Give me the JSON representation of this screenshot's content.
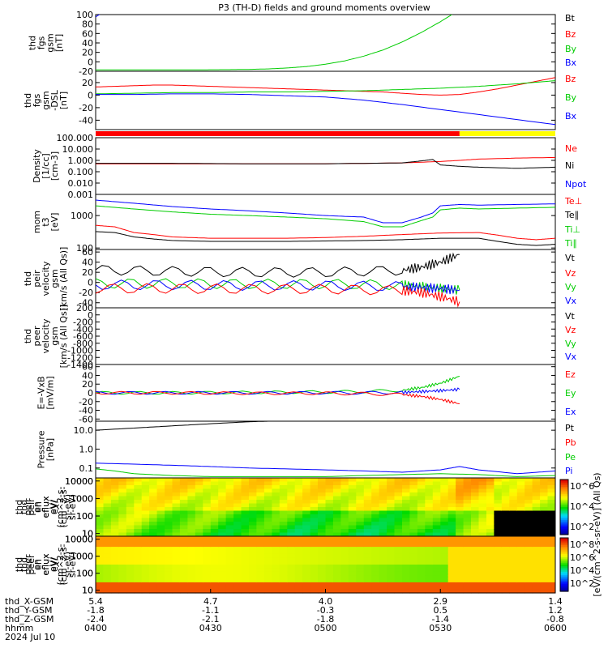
{
  "title": "P3 (TH-D) fields and ground moments overview",
  "chart_data": [
    {
      "type": "line",
      "panel": "fgs_btot",
      "ylabel": [
        "thd",
        "fgs",
        "gsm",
        "[nT]"
      ],
      "ylim": [
        -20,
        100
      ],
      "yticks": [
        "100",
        "80",
        "60",
        "40",
        "20",
        "0",
        "-20"
      ],
      "legend": [
        {
          "label": "Bt",
          "color": "#000000"
        },
        {
          "label": "Bz",
          "color": "#ff0000"
        },
        {
          "label": "By",
          "color": "#00cc00"
        },
        {
          "label": "Bx",
          "color": "#0000ff"
        }
      ],
      "series": [
        {
          "name": "By",
          "color": "#00cc00",
          "x": [
            0,
            5,
            10,
            15,
            20,
            25,
            30,
            35,
            40,
            45,
            50,
            55,
            60,
            65,
            70,
            75,
            80,
            85,
            90,
            95
          ],
          "y": [
            -17,
            -17,
            -17,
            -17,
            -17,
            -17,
            -16.8,
            -16.5,
            -16,
            -15,
            -13,
            -10,
            -5,
            2,
            12,
            25,
            42,
            62,
            85,
            110
          ]
        },
        {
          "name": "Bx",
          "color": "#0000ff",
          "x": [
            0,
            0.5,
            1,
            1.5,
            2
          ],
          "y": [
            95,
            98,
            100,
            103,
            106
          ]
        }
      ]
    },
    {
      "type": "line",
      "panel": "fgs_gsm",
      "ylabel": [
        "thd",
        "fgs",
        "gsm",
        "-DSL",
        "[nT]"
      ],
      "ylim": [
        -55,
        38
      ],
      "yticks": [
        "20",
        "0",
        "-20",
        "-40"
      ],
      "legend": [
        {
          "label": "Bz",
          "color": "#ff0000"
        },
        {
          "label": "By",
          "color": "#00cc00"
        },
        {
          "label": "Bx",
          "color": "#0000ff"
        }
      ],
      "series": [
        {
          "name": "Bz",
          "color": "#ff0000",
          "x": [
            0,
            5,
            10,
            15,
            20,
            25,
            30,
            35,
            40,
            45,
            50,
            55,
            60,
            65,
            70,
            75,
            80,
            85,
            90,
            95,
            100,
            105,
            110,
            115,
            120
          ],
          "y": [
            13,
            14,
            15,
            16,
            16,
            15,
            14,
            13,
            12,
            11,
            10,
            9,
            8,
            7,
            6,
            5,
            3,
            1,
            0,
            1,
            5,
            10,
            16,
            22,
            28
          ]
        },
        {
          "name": "By",
          "color": "#00cc00",
          "x": [
            0,
            10,
            20,
            30,
            40,
            50,
            60,
            70,
            80,
            90,
            100,
            110,
            120
          ],
          "y": [
            2,
            3,
            4,
            4,
            5,
            5,
            6,
            7,
            9,
            11,
            14,
            18,
            23
          ]
        },
        {
          "name": "Bx",
          "color": "#0000ff",
          "x": [
            0,
            10,
            20,
            30,
            40,
            50,
            60,
            70,
            80,
            90,
            100,
            110,
            120
          ],
          "y": [
            1,
            1,
            2,
            2,
            1,
            -1,
            -3,
            -8,
            -15,
            -23,
            -31,
            -39,
            -47
          ]
        }
      ],
      "bar": {
        "red_until": 95,
        "yellow_after": 95
      }
    },
    {
      "type": "line",
      "panel": "density",
      "ylabel": [
        "Density",
        "[1/cc]",
        "[cm-3]"
      ],
      "scale": "log",
      "ylim": [
        0.001,
        100
      ],
      "yticks": [
        "100.000",
        "10.000",
        "1.000",
        "0.100",
        "0.010",
        "0.001"
      ],
      "legend": [
        {
          "label": "Ne",
          "color": "#ff0000"
        },
        {
          "label": "Ni",
          "color": "#000000"
        },
        {
          "label": "Npot",
          "color": "#0000ff"
        }
      ],
      "series": [
        {
          "name": "Ne",
          "color": "#ff0000",
          "x": [
            0,
            20,
            40,
            60,
            80,
            90,
            95,
            100,
            110,
            120
          ],
          "y": [
            0.5,
            0.5,
            0.5,
            0.5,
            0.6,
            0.8,
            1.0,
            1.3,
            1.6,
            1.8
          ]
        },
        {
          "name": "Ni",
          "color": "#000000",
          "x": [
            0,
            20,
            40,
            60,
            80,
            85,
            88,
            90,
            95,
            100,
            110,
            120
          ],
          "y": [
            0.55,
            0.55,
            0.5,
            0.5,
            0.6,
            0.9,
            1.2,
            0.4,
            0.3,
            0.25,
            0.2,
            0.25
          ]
        }
      ]
    },
    {
      "type": "line",
      "panel": "temperature",
      "ylabel": [
        "mom",
        "t3",
        "[eV]"
      ],
      "scale": "log",
      "ylim": [
        90,
        4500
      ],
      "yticks": [
        "1000",
        "100"
      ],
      "legend": [
        {
          "label": "Te⊥",
          "color": "#ff0000"
        },
        {
          "label": "Te∥",
          "color": "#000000"
        },
        {
          "label": "Ti⊥",
          "color": "#00cc00"
        },
        {
          "label": "Ti∥",
          "color": "#00cc00"
        }
      ],
      "series": [
        {
          "name": "Ti⊥",
          "color": "#0000ff",
          "x": [
            0,
            10,
            20,
            30,
            40,
            50,
            60,
            70,
            75,
            80,
            85,
            88,
            90,
            95,
            100,
            110,
            120
          ],
          "y": [
            3000,
            2400,
            1900,
            1600,
            1400,
            1200,
            1000,
            900,
            600,
            600,
            900,
            1200,
            2000,
            2200,
            2100,
            2200,
            2300
          ]
        },
        {
          "name": "Ti∥",
          "color": "#00cc00",
          "x": [
            0,
            10,
            20,
            30,
            40,
            50,
            60,
            70,
            75,
            80,
            85,
            88,
            90,
            95,
            100,
            110,
            120
          ],
          "y": [
            2000,
            1600,
            1300,
            1100,
            1000,
            900,
            800,
            650,
            450,
            450,
            700,
            900,
            1500,
            1700,
            1600,
            1700,
            1800
          ]
        },
        {
          "name": "Te⊥",
          "color": "#ff0000",
          "x": [
            0,
            5,
            10,
            15,
            20,
            30,
            40,
            50,
            60,
            70,
            80,
            90,
            100,
            105,
            110,
            115,
            120
          ],
          "y": [
            500,
            450,
            300,
            260,
            220,
            200,
            200,
            200,
            210,
            230,
            260,
            290,
            300,
            250,
            200,
            180,
            200
          ]
        },
        {
          "name": "Te∥",
          "color": "#000000",
          "x": [
            0,
            5,
            10,
            15,
            20,
            30,
            40,
            50,
            60,
            70,
            80,
            90,
            100,
            105,
            110,
            115,
            120
          ],
          "y": [
            320,
            300,
            220,
            190,
            170,
            160,
            160,
            160,
            165,
            170,
            180,
            200,
            200,
            160,
            130,
            120,
            130
          ]
        }
      ]
    },
    {
      "type": "line",
      "panel": "velocity_peir",
      "ylabel": [
        "thd",
        "peir",
        "velocity",
        "gsm",
        "[km/s (All Qs)]"
      ],
      "ylim": [
        -50,
        65
      ],
      "yticks": [
        "60",
        "40",
        "20",
        "0",
        "-20",
        "-40"
      ],
      "legend": [
        {
          "label": "Vt",
          "color": "#000000"
        },
        {
          "label": "Vz",
          "color": "#ff0000"
        },
        {
          "label": "Vy",
          "color": "#00cc00"
        },
        {
          "label": "Vx",
          "color": "#0000ff"
        }
      ],
      "series": [
        {
          "name": "Vt",
          "color": "#000000",
          "x": [
            0,
            20,
            40,
            60,
            80,
            85,
            90,
            95
          ],
          "y": [
            25,
            22,
            20,
            20,
            24,
            30,
            40,
            55
          ]
        },
        {
          "name": "Vy",
          "color": "#00cc00",
          "x": [
            0,
            20,
            40,
            60,
            80,
            85,
            90,
            95
          ],
          "y": [
            -2,
            -2,
            -3,
            -3,
            -5,
            -8,
            -12,
            -15
          ]
        },
        {
          "name": "Vx",
          "color": "#0000ff",
          "x": [
            0,
            20,
            40,
            60,
            80,
            85,
            90,
            95
          ],
          "y": [
            -5,
            -5,
            -6,
            -6,
            -8,
            -10,
            -12,
            -15
          ]
        },
        {
          "name": "Vz",
          "color": "#ff0000",
          "x": [
            0,
            20,
            40,
            60,
            80,
            85,
            90,
            95
          ],
          "y": [
            -12,
            -12,
            -13,
            -13,
            -16,
            -20,
            -28,
            -38
          ]
        }
      ]
    },
    {
      "type": "line",
      "panel": "velocity_peer",
      "ylabel": [
        "thd",
        "peer",
        "velocity",
        "gsm",
        "[km/s (All Qs)]"
      ],
      "ylim": [
        -1400,
        200
      ],
      "yticks": [
        "200",
        "0",
        "-200",
        "-400",
        "-600",
        "-800",
        "-1000",
        "-1200",
        "-1400"
      ],
      "legend": [
        {
          "label": "Vt",
          "color": "#000000"
        },
        {
          "label": "Vz",
          "color": "#ff0000"
        },
        {
          "label": "Vy",
          "color": "#00cc00"
        },
        {
          "label": "Vx",
          "color": "#0000ff"
        }
      ],
      "series": []
    },
    {
      "type": "line",
      "panel": "efield",
      "ylabel": [
        "E=-VxB",
        "[mV/m]"
      ],
      "ylim": [
        -65,
        65
      ],
      "yticks": [
        "60",
        "40",
        "20",
        "0",
        "-20",
        "-40",
        "-60"
      ],
      "legend": [
        {
          "label": "Ez",
          "color": "#ff0000"
        },
        {
          "label": "Ey",
          "color": "#00cc00"
        },
        {
          "label": "Ex",
          "color": "#0000ff"
        }
      ],
      "series": [
        {
          "name": "Ey",
          "color": "#00cc00",
          "x": [
            0,
            20,
            40,
            60,
            70,
            80,
            85,
            90,
            95
          ],
          "y": [
            0,
            0,
            1,
            2,
            3,
            6,
            12,
            22,
            38
          ]
        },
        {
          "name": "Ex",
          "color": "#0000ff",
          "x": [
            0,
            20,
            40,
            60,
            70,
            80,
            85,
            90,
            95
          ],
          "y": [
            0,
            0,
            0,
            0,
            0,
            1,
            3,
            5,
            8
          ]
        },
        {
          "name": "Ez",
          "color": "#ff0000",
          "x": [
            0,
            20,
            40,
            60,
            70,
            80,
            85,
            90,
            95
          ],
          "y": [
            0,
            0,
            -1,
            -1,
            -2,
            -4,
            -8,
            -15,
            -25
          ]
        }
      ]
    },
    {
      "type": "line",
      "panel": "pressure",
      "ylabel": [
        "Pressure",
        "[nPa]"
      ],
      "scale": "log",
      "ylim": [
        0.03,
        30
      ],
      "yticks": [
        "10.0",
        "1.0",
        "0.1"
      ],
      "legend": [
        {
          "label": "Pt",
          "color": "#000000"
        },
        {
          "label": "Pb",
          "color": "#ff0000"
        },
        {
          "label": "Pe",
          "color": "#00cc00"
        },
        {
          "label": "Pi",
          "color": "#0000ff"
        }
      ],
      "series": [
        {
          "name": "Pt",
          "color": "#000000",
          "x": [
            0,
            10,
            20,
            30,
            40,
            45
          ],
          "y": [
            10,
            13,
            17,
            22,
            28,
            30
          ]
        },
        {
          "name": "Pi",
          "color": "#0000ff",
          "x": [
            0,
            10,
            20,
            30,
            40,
            50,
            60,
            70,
            80,
            90,
            95,
            100,
            110,
            120
          ],
          "y": [
            0.18,
            0.16,
            0.14,
            0.12,
            0.1,
            0.09,
            0.08,
            0.07,
            0.06,
            0.08,
            0.12,
            0.08,
            0.05,
            0.07
          ]
        },
        {
          "name": "Pe",
          "color": "#00cc00",
          "x": [
            0,
            5,
            10,
            20,
            30,
            40,
            50,
            60,
            70,
            80,
            90,
            100,
            110,
            120
          ],
          "y": [
            0.09,
            0.07,
            0.05,
            0.04,
            0.035,
            0.035,
            0.035,
            0.035,
            0.04,
            0.045,
            0.05,
            0.045,
            0.035,
            0.04
          ]
        }
      ]
    },
    {
      "type": "heatmap",
      "panel": "peir_eflux",
      "ylabel": [
        "thd",
        "peir",
        "en",
        "eflux",
        "eV/",
        "(cm^2-s-",
        "sr-eV)"
      ],
      "scale": "log",
      "ylim": [
        7,
        15000
      ],
      "yticks": [
        "10000",
        "1000",
        "100",
        "10"
      ]
    },
    {
      "type": "heatmap",
      "panel": "peer_eflux",
      "ylabel": [
        "thd",
        "peer",
        "en",
        "eflux",
        "eV/",
        "(cm^2-s-",
        "sr-eV)"
      ],
      "scale": "log",
      "ylim": [
        7,
        15000
      ],
      "yticks": [
        "10000",
        "1000",
        "100",
        "10"
      ]
    }
  ],
  "colorbar": {
    "label": "[eV/(cm^2-s-sr-eV)] (All Qs)",
    "top_ticks": [
      "10^6",
      "10^4",
      "10^2"
    ],
    "bottom_ticks": [
      "10^8",
      "10^6",
      "10^4",
      "10^2"
    ]
  },
  "xaxis": {
    "rows": [
      {
        "label": "thd_X-GSM",
        "values": [
          "5.4",
          "4.7",
          "4.0",
          "2.9",
          "1.4"
        ]
      },
      {
        "label": "thd_Y-GSM",
        "values": [
          "-1.8",
          "-1.1",
          "-0.3",
          "0.5",
          "1.2"
        ]
      },
      {
        "label": "thd_Z-GSM",
        "values": [
          "-2.4",
          "-2.1",
          "-1.8",
          "-1.4",
          "-0.8"
        ]
      },
      {
        "label": "hhmm",
        "values": [
          "0400",
          "0430",
          "0500",
          "0530",
          "0600"
        ]
      }
    ],
    "date": "2024 Jul 10",
    "xlim": [
      0,
      120
    ]
  }
}
